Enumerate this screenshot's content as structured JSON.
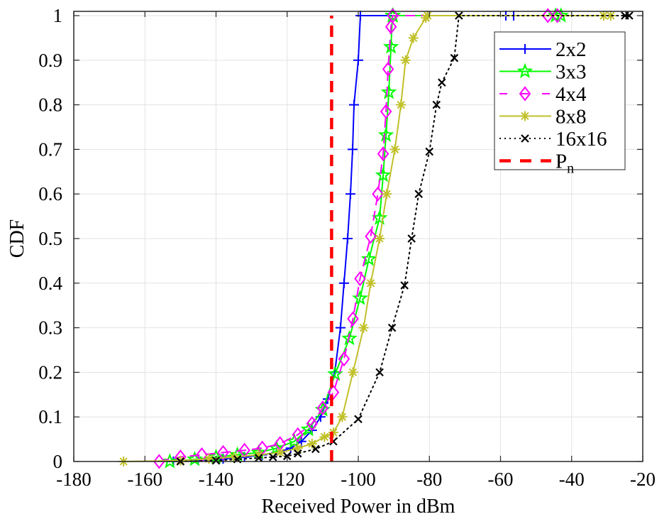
{
  "chart_data": {
    "type": "line",
    "title": "",
    "xlabel": "Received Power in dBm",
    "ylabel": "CDF",
    "xlim": [
      -180,
      -20
    ],
    "ylim": [
      0,
      1
    ],
    "grid": true,
    "legend_position": "top-right",
    "xticks": [
      -180,
      -160,
      -140,
      -120,
      -100,
      -80,
      -60,
      -40,
      -20
    ],
    "xtick_labels": [
      "-180",
      "-160",
      "-140",
      "-120",
      "-100",
      "-80",
      "-60",
      "-40",
      "-20"
    ],
    "yticks": [
      0,
      0.1,
      0.2,
      0.3,
      0.4,
      0.5,
      0.6,
      0.7,
      0.8,
      0.9,
      1
    ],
    "ytick_labels": [
      "0",
      "0.1",
      "0.2",
      "0.3",
      "0.4",
      "0.5",
      "0.6",
      "0.7",
      "0.8",
      "0.9",
      "1"
    ],
    "series": [
      {
        "name": "2x2",
        "color": "#0000ff",
        "line": "solid",
        "marker": "plus",
        "x": [
          -152,
          -145,
          -138,
          -132,
          -127,
          -123,
          -119,
          -116,
          -113,
          -110.6,
          -108.6,
          -106.6,
          -105,
          -104,
          -103,
          -102.2,
          -101.6,
          -101.2,
          -100,
          -99.4,
          -58.5,
          -56.3
        ],
        "y": [
          0,
          0.003,
          0.006,
          0.01,
          0.015,
          0.02,
          0.03,
          0.045,
          0.07,
          0.1,
          0.14,
          0.2,
          0.3,
          0.4,
          0.5,
          0.6,
          0.7,
          0.8,
          0.9,
          1,
          1,
          1
        ]
      },
      {
        "name": "3x3",
        "color": "#00ff00",
        "line": "solid",
        "marker": "star",
        "x": [
          -153,
          -146,
          -140,
          -134,
          -128,
          -123,
          -118,
          -114,
          -110,
          -106.5,
          -102.5,
          -99.5,
          -97,
          -94,
          -93,
          -92.2,
          -91.4,
          -90.8,
          -90.4,
          -90.2,
          -44.5,
          -43
        ],
        "y": [
          0,
          0.005,
          0.01,
          0.015,
          0.02,
          0.03,
          0.045,
          0.072,
          0.116,
          0.196,
          0.276,
          0.366,
          0.454,
          0.546,
          0.642,
          0.732,
          0.828,
          0.93,
          1,
          1,
          1,
          1
        ]
      },
      {
        "name": "4x4",
        "color": "#ff00ff",
        "line": "dashed",
        "marker": "diamond",
        "x": [
          -156,
          -150,
          -144,
          -138,
          -132,
          -127,
          -122,
          -117,
          -113,
          -110,
          -107,
          -104,
          -101.5,
          -99.5,
          -96.5,
          -94.5,
          -93,
          -92.2,
          -91.6,
          -90.8,
          -90.3,
          -46.7,
          -44
        ],
        "y": [
          0,
          0.01,
          0.015,
          0.02,
          0.025,
          0.03,
          0.04,
          0.06,
          0.085,
          0.12,
          0.155,
          0.23,
          0.32,
          0.41,
          0.505,
          0.6,
          0.69,
          0.785,
          0.88,
          0.975,
          1,
          1,
          1
        ]
      },
      {
        "name": "8x8",
        "color": "#c0c02a",
        "line": "solid",
        "marker": "asterisk",
        "x": [
          -166,
          -150,
          -142,
          -135,
          -128,
          -122,
          -117,
          -113,
          -109.5,
          -107,
          -104.5,
          -101.5,
          -98.5,
          -96.5,
          -94,
          -92,
          -89.7,
          -88,
          -86.7,
          -84.5,
          -81,
          -80.5,
          -31,
          -29
        ],
        "y": [
          0,
          0.002,
          0.006,
          0.01,
          0.015,
          0.02,
          0.03,
          0.04,
          0.055,
          0.065,
          0.1,
          0.2,
          0.3,
          0.4,
          0.5,
          0.6,
          0.7,
          0.8,
          0.9,
          0.95,
          0.995,
          1,
          1,
          1
        ]
      },
      {
        "name": "16x16",
        "color": "#000000",
        "line": "dotted",
        "marker": "x",
        "x": [
          -150,
          -140,
          -134,
          -128,
          -124,
          -120,
          -117,
          -112,
          -107,
          -100,
          -94,
          -90.5,
          -87,
          -85,
          -83,
          -80,
          -78,
          -76.5,
          -73,
          -71.7,
          -25,
          -23.8
        ],
        "y": [
          0,
          0.002,
          0.005,
          0.008,
          0.01,
          0.012,
          0.018,
          0.028,
          0.045,
          0.095,
          0.2,
          0.3,
          0.395,
          0.5,
          0.6,
          0.695,
          0.8,
          0.85,
          0.905,
          1,
          1,
          1
        ]
      },
      {
        "name": "P_n",
        "label_main": "P",
        "label_sub": "n",
        "color": "#ff0000",
        "line": "dashed-thick",
        "marker": "none",
        "x": [
          -107.5,
          -107.5
        ],
        "y": [
          0,
          1
        ]
      }
    ]
  }
}
